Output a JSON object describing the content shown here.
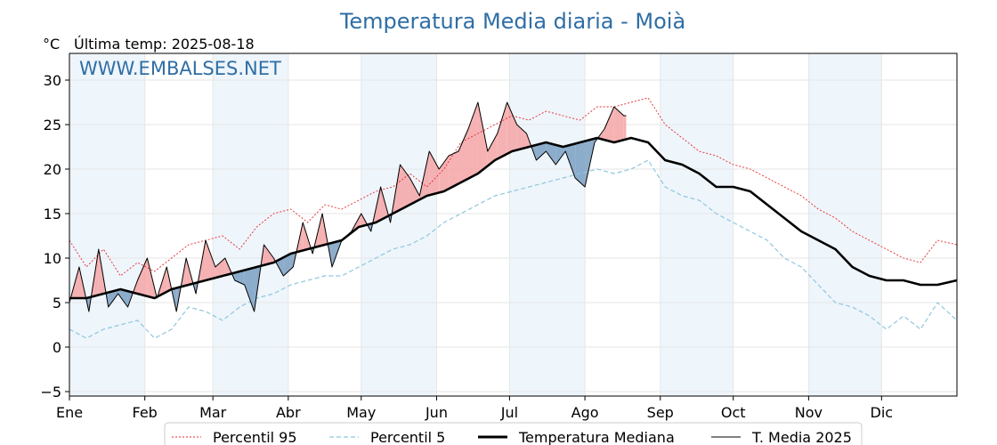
{
  "chart_data": {
    "type": "line",
    "title": "Temperatura Media diaria - Moià",
    "unit_label": "°C",
    "last_temp_label": "Última temp: 2025-08-18",
    "watermark": "WWW.EMBALSES.NET",
    "ylim": [
      -5.5,
      33
    ],
    "yticks": [
      -5,
      0,
      5,
      10,
      15,
      20,
      25,
      30
    ],
    "xlim": [
      1,
      366
    ],
    "months": [
      {
        "label": "Ene",
        "day": 1
      },
      {
        "label": "Feb",
        "day": 32
      },
      {
        "label": "Mar",
        "day": 60
      },
      {
        "label": "Abr",
        "day": 91
      },
      {
        "label": "May",
        "day": 121
      },
      {
        "label": "Jun",
        "day": 152
      },
      {
        "label": "Jul",
        "day": 182
      },
      {
        "label": "Ago",
        "day": 213
      },
      {
        "label": "Sep",
        "day": 244
      },
      {
        "label": "Oct",
        "day": 274
      },
      {
        "label": "Nov",
        "day": 305
      },
      {
        "label": "Dic",
        "day": 335
      }
    ],
    "shaded_month_bands": [
      [
        1,
        32
      ],
      [
        60,
        91
      ],
      [
        121,
        152
      ],
      [
        182,
        213
      ],
      [
        244,
        274
      ],
      [
        305,
        335
      ]
    ],
    "grid": true,
    "legend_position": "bottom",
    "colors": {
      "p95": "#e8262a",
      "p5": "#8ec7dd",
      "median": "#000000",
      "current": "#000000",
      "above_fill": "#f4a4a6",
      "below_fill": "#7a9fc2",
      "band": "#eef5fb",
      "title": "#2f6ea5"
    },
    "series": [
      {
        "name": "Percentil 95",
        "key": "p95",
        "style": "dotted",
        "x": [
          1,
          8,
          15,
          22,
          29,
          36,
          43,
          50,
          57,
          64,
          71,
          78,
          85,
          92,
          99,
          106,
          113,
          120,
          127,
          134,
          141,
          148,
          155,
          162,
          169,
          176,
          183,
          190,
          197,
          204,
          211,
          218,
          225,
          232,
          239,
          246,
          253,
          260,
          267,
          274,
          281,
          288,
          295,
          302,
          309,
          316,
          323,
          330,
          337,
          344,
          351,
          358,
          366
        ],
        "values": [
          12,
          9,
          11,
          8,
          9.5,
          8.5,
          10,
          11.5,
          12,
          12.5,
          11,
          13.5,
          15,
          15.5,
          14,
          16,
          15.5,
          16.5,
          17.5,
          18,
          19.5,
          18,
          20,
          23,
          24,
          25,
          26,
          25.5,
          26.5,
          26,
          25.5,
          27,
          27,
          27.5,
          28,
          25,
          23.5,
          22,
          21.5,
          20.5,
          20,
          19,
          18,
          17,
          15.5,
          14.5,
          13,
          12,
          11,
          10,
          9.5,
          12,
          11.5
        ]
      },
      {
        "name": "Percentil 5",
        "key": "p5",
        "style": "dashed",
        "x": [
          1,
          8,
          15,
          22,
          29,
          36,
          43,
          50,
          57,
          64,
          71,
          78,
          85,
          92,
          99,
          106,
          113,
          120,
          127,
          134,
          141,
          148,
          155,
          162,
          169,
          176,
          183,
          190,
          197,
          204,
          211,
          218,
          225,
          232,
          239,
          246,
          253,
          260,
          267,
          274,
          281,
          288,
          295,
          302,
          309,
          316,
          323,
          330,
          337,
          344,
          351,
          358,
          366
        ],
        "values": [
          2,
          1,
          2,
          2.5,
          3,
          1,
          2,
          4.5,
          4,
          3,
          4.5,
          5.5,
          6,
          7,
          7.5,
          8,
          8,
          9,
          10,
          11,
          11.5,
          12.5,
          14,
          15,
          16,
          17,
          17.5,
          18,
          18.5,
          19,
          19.5,
          20,
          19.5,
          20,
          21,
          18,
          17,
          16.5,
          15,
          14,
          13,
          12,
          10,
          9,
          7,
          5,
          4.5,
          3.5,
          2,
          3.5,
          2,
          5,
          3
        ]
      },
      {
        "name": "Temperatura Mediana",
        "key": "median",
        "style": "thick",
        "x": [
          1,
          8,
          15,
          22,
          29,
          36,
          43,
          50,
          57,
          64,
          71,
          78,
          85,
          92,
          99,
          106,
          113,
          120,
          127,
          134,
          141,
          148,
          155,
          162,
          169,
          176,
          183,
          190,
          197,
          204,
          211,
          218,
          225,
          232,
          239,
          246,
          253,
          260,
          267,
          274,
          281,
          288,
          295,
          302,
          309,
          316,
          323,
          330,
          337,
          344,
          351,
          358,
          366
        ],
        "values": [
          5.5,
          5.5,
          6,
          6.5,
          6,
          5.5,
          6.5,
          7,
          7.5,
          8,
          8.5,
          9,
          9.5,
          10.5,
          11,
          11.5,
          12,
          13.5,
          14,
          15,
          16,
          17,
          17.5,
          18.5,
          19.5,
          21,
          22,
          22.5,
          23,
          22.5,
          23,
          23.5,
          23,
          23.5,
          23,
          21,
          20.5,
          19.5,
          18,
          18,
          17.5,
          16,
          14.5,
          13,
          12,
          11,
          9,
          8,
          7.5,
          7.5,
          7,
          7,
          7.5
        ]
      },
      {
        "name": "T. Media 2025",
        "key": "current",
        "style": "thin",
        "x": [
          1,
          5,
          9,
          13,
          17,
          21,
          25,
          29,
          33,
          37,
          41,
          45,
          49,
          53,
          57,
          61,
          65,
          69,
          73,
          77,
          81,
          85,
          89,
          93,
          97,
          101,
          105,
          109,
          113,
          117,
          121,
          125,
          129,
          133,
          137,
          141,
          145,
          149,
          153,
          157,
          161,
          165,
          169,
          173,
          177,
          181,
          185,
          189,
          193,
          197,
          201,
          205,
          209,
          213,
          217,
          221,
          225,
          229,
          230
        ],
        "values": [
          5,
          9,
          4,
          11,
          4.5,
          6,
          4.5,
          7.5,
          10,
          5.5,
          9,
          4,
          10,
          6,
          12,
          9,
          10,
          7.5,
          7,
          4,
          11.5,
          10,
          8,
          9,
          14,
          10.5,
          15,
          9,
          12,
          13,
          15,
          13,
          18,
          14,
          20.5,
          19,
          17,
          22,
          20,
          21.5,
          22,
          24.5,
          27.5,
          22,
          24,
          27.5,
          25,
          24,
          21,
          22,
          20.5,
          22,
          19,
          18,
          23,
          24.5,
          27,
          26,
          26
        ]
      }
    ]
  }
}
